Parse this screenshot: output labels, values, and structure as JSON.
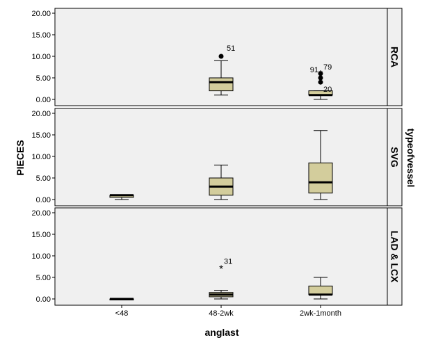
{
  "chart_data": {
    "type": "box",
    "xlabel": "anglast",
    "ylabel": "PIECES",
    "facet_title": "typeofvessel",
    "categories": [
      "<48",
      "48-2wk",
      "2wk-1month"
    ],
    "y_ticks": [
      "0.00",
      "5.00",
      "10.00",
      "15.00",
      "20.00"
    ],
    "ylim": [
      0,
      20
    ],
    "grid": false,
    "colors": {
      "box_fill": "#d3cd9c",
      "panel_bg": "#f0f0f0"
    },
    "panels": [
      {
        "name": "RCA",
        "boxes": [
          null,
          {
            "category": "48-2wk",
            "min": 1,
            "q1": 2,
            "median": 4,
            "q3": 5,
            "max": 9
          },
          {
            "category": "2wk-1month",
            "min": 0,
            "q1": 1,
            "median": 1,
            "q3": 2,
            "max": 2
          }
        ],
        "outliers": [
          {
            "category": "48-2wk",
            "value": 10,
            "label": "51",
            "marker": "circle"
          },
          {
            "category": "2wk-1month",
            "value": 6,
            "label": "79",
            "marker": "circle"
          },
          {
            "category": "2wk-1month",
            "value": 6,
            "label": "91",
            "marker": "star"
          },
          {
            "category": "2wk-1month",
            "value": 5,
            "label": "",
            "marker": "circle"
          },
          {
            "category": "2wk-1month",
            "value": 4,
            "label": "20",
            "marker": "circle"
          }
        ]
      },
      {
        "name": "SVG",
        "boxes": [
          {
            "category": "<48",
            "min": 0,
            "q1": 0.5,
            "median": 1,
            "q3": 1,
            "max": 1
          },
          {
            "category": "48-2wk",
            "min": 0,
            "q1": 1,
            "median": 3,
            "q3": 5,
            "max": 8
          },
          {
            "category": "2wk-1month",
            "min": 0,
            "q1": 1.5,
            "median": 4,
            "q3": 8.5,
            "max": 16
          }
        ],
        "outliers": []
      },
      {
        "name": "LAD & LCX",
        "boxes": [
          {
            "category": "<48",
            "min": 0,
            "q1": 0,
            "median": 0,
            "q3": 0,
            "max": 0
          },
          {
            "category": "48-2wk",
            "min": 0,
            "q1": 0.5,
            "median": 1,
            "q3": 1.5,
            "max": 2
          },
          {
            "category": "2wk-1month",
            "min": 0,
            "q1": 1,
            "median": 1,
            "q3": 3,
            "max": 5
          }
        ],
        "outliers": [
          {
            "category": "48-2wk",
            "value": 7,
            "label": "31",
            "marker": "star"
          }
        ]
      }
    ]
  }
}
